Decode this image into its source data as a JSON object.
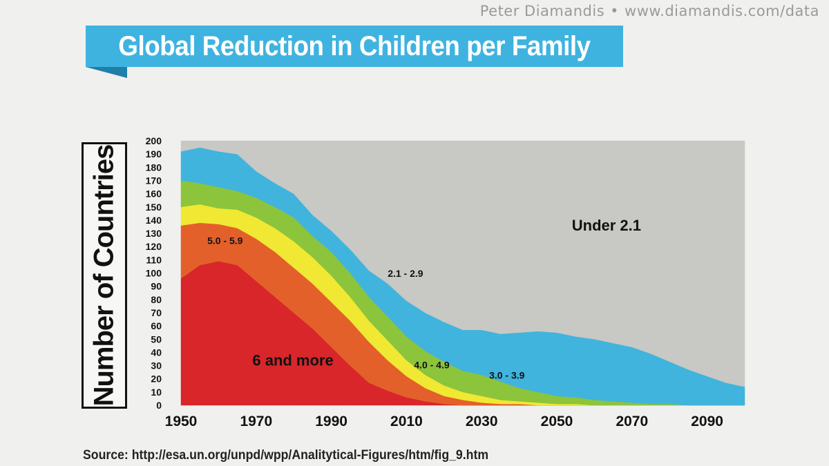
{
  "credit": {
    "author": "Peter Diamandis",
    "separator": "•",
    "site": "www.diamandis.com/data"
  },
  "banner": {
    "title": "Global Reduction in Children per Family"
  },
  "source": {
    "text": "Source: http://esa.un.org/unpd/wpp/Analitytical-Figures/htm/fig_9.htm"
  },
  "colors": {
    "under_2_1": "#c8c8c4",
    "r2_1_2_9": "#40b4dc",
    "r3_0_3_9": "#8cc43c",
    "r4_0_4_9": "#f0e832",
    "r5_0_5_9": "#e4602a",
    "r6_plus": "#d8262a"
  },
  "chart_data": {
    "type": "area",
    "stacked": true,
    "title": "Global Reduction in Children per Family",
    "ylabel": "Number of Countries",
    "xlabel": "",
    "xlim": [
      1950,
      2100
    ],
    "ylim": [
      0,
      200
    ],
    "yticks": [
      0,
      10,
      20,
      30,
      40,
      50,
      60,
      70,
      80,
      90,
      100,
      110,
      120,
      130,
      140,
      150,
      160,
      170,
      180,
      190,
      200
    ],
    "xticks": [
      1950,
      1970,
      1990,
      2010,
      2030,
      2050,
      2070,
      2090
    ],
    "x": [
      1950,
      1955,
      1960,
      1965,
      1970,
      1975,
      1980,
      1985,
      1990,
      1995,
      2000,
      2005,
      2010,
      2015,
      2020,
      2025,
      2030,
      2035,
      2040,
      2045,
      2050,
      2055,
      2060,
      2065,
      2070,
      2075,
      2080,
      2085,
      2090,
      2095,
      2100
    ],
    "series": [
      {
        "name": "6 and more",
        "label": "6 and more",
        "color_key": "r6_plus",
        "values": [
          96,
          106,
          109,
          106,
          94,
          82,
          70,
          58,
          44,
          30,
          17,
          11,
          6,
          3,
          1,
          0,
          0,
          0,
          0,
          0,
          0,
          0,
          0,
          0,
          0,
          0,
          0,
          0,
          0,
          0,
          0
        ]
      },
      {
        "name": "5.0 - 5.9",
        "label": "5.0 - 5.9",
        "color_key": "r5_0_5_9",
        "values": [
          40,
          32,
          28,
          28,
          32,
          34,
          34,
          34,
          34,
          34,
          31,
          23,
          16,
          10,
          6,
          4,
          2,
          1,
          1,
          0,
          0,
          0,
          0,
          0,
          0,
          0,
          0,
          0,
          0,
          0,
          0
        ]
      },
      {
        "name": "4.0 - 4.9",
        "label": "4.0 - 4.9",
        "color_key": "r4_0_4_9",
        "values": [
          14,
          14,
          12,
          14,
          16,
          18,
          20,
          20,
          20,
          18,
          16,
          15,
          12,
          10,
          8,
          6,
          5,
          3,
          2,
          2,
          1,
          1,
          0,
          0,
          0,
          0,
          0,
          0,
          0,
          0,
          0
        ]
      },
      {
        "name": "3.0 - 3.9",
        "label": "3.0 - 3.9",
        "color_key": "r3_0_3_9",
        "values": [
          20,
          16,
          16,
          14,
          15,
          16,
          18,
          16,
          18,
          18,
          18,
          18,
          18,
          18,
          18,
          16,
          16,
          14,
          10,
          8,
          6,
          5,
          4,
          3,
          2,
          1,
          1,
          0,
          0,
          0,
          0
        ]
      },
      {
        "name": "2.1 - 2.9",
        "label": "2.1 - 2.9",
        "color_key": "r2_1_2_9",
        "values": [
          22,
          27,
          27,
          28,
          20,
          18,
          18,
          16,
          16,
          18,
          20,
          25,
          27,
          29,
          30,
          31,
          34,
          36,
          42,
          46,
          48,
          46,
          46,
          44,
          42,
          38,
          32,
          27,
          22,
          17,
          14
        ]
      },
      {
        "name": "Under 2.1",
        "label": "Under 2.1",
        "color_key": "under_2_1",
        "values": [
          8,
          5,
          8,
          10,
          23,
          32,
          40,
          56,
          68,
          82,
          98,
          108,
          121,
          130,
          137,
          143,
          143,
          146,
          145,
          144,
          145,
          148,
          150,
          153,
          156,
          161,
          167,
          173,
          178,
          183,
          186
        ]
      }
    ],
    "band_labels": [
      {
        "text": "6 and more",
        "at_x": 1969,
        "at_y": 30,
        "size": "large"
      },
      {
        "text": "5.0 - 5.9",
        "at_x": 1957,
        "at_y": 122,
        "size": "small",
        "color": "#ffffff"
      },
      {
        "text": "4.0 - 4.9",
        "at_x": 2012,
        "at_y": 28,
        "size": "small"
      },
      {
        "text": "3.0 - 3.9",
        "at_x": 2032,
        "at_y": 20,
        "size": "small"
      },
      {
        "text": "2.1 - 2.9",
        "at_x": 2005,
        "at_y": 97,
        "size": "small"
      },
      {
        "text": "Under 2.1",
        "at_x": 2054,
        "at_y": 132,
        "size": "large"
      }
    ]
  }
}
